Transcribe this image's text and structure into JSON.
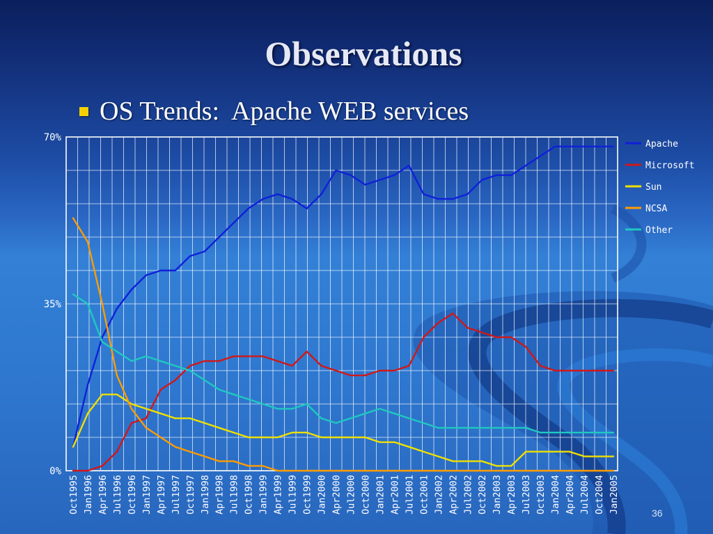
{
  "slide": {
    "title": "Observations",
    "bullet": "OS Trends:  Apache WEB services",
    "slide_number": "36"
  },
  "colors": {
    "bullet": "#f7d000",
    "title": "#e6e9f5",
    "gridline": "#ffffff",
    "axis_text": "#ffffff"
  },
  "chart_data": {
    "type": "line",
    "title": "",
    "xlabel": "",
    "ylabel": "",
    "ylim": [
      0,
      70
    ],
    "yticks": [
      "0%",
      "35%",
      "70%"
    ],
    "grid": true,
    "legend_position": "right",
    "x": [
      "Oct1995",
      "Jan1996",
      "Apr1996",
      "Jul1996",
      "Oct1996",
      "Jan1997",
      "Apr1997",
      "Jul1997",
      "Oct1997",
      "Jan1998",
      "Apr1998",
      "Jul1998",
      "Oct1998",
      "Jan1999",
      "Apr1999",
      "Jul1999",
      "Oct1999",
      "Jan2000",
      "Apr2000",
      "Jul2000",
      "Oct2000",
      "Jan2001",
      "Apr2001",
      "Jul2001",
      "Oct2001",
      "Jan2002",
      "Apr2002",
      "Jul2002",
      "Oct2002",
      "Jan2003",
      "Apr2003",
      "Jul2003",
      "Oct2003",
      "Jan2004",
      "Apr2004",
      "Jul2004",
      "Oct2004",
      "Jan2005"
    ],
    "series": [
      {
        "name": "Apache",
        "color": "#1020d8",
        "values": [
          5,
          18,
          28,
          34,
          38,
          41,
          42,
          42,
          45,
          46,
          49,
          52,
          55,
          57,
          58,
          57,
          55,
          58,
          63,
          62,
          60,
          61,
          62,
          64,
          58,
          57,
          57,
          58,
          61,
          62,
          62,
          64,
          66,
          68,
          68,
          68,
          68,
          68
        ]
      },
      {
        "name": "Microsoft",
        "color": "#d01818",
        "values": [
          0,
          0,
          1,
          4,
          10,
          11,
          17,
          19,
          22,
          23,
          23,
          24,
          24,
          24,
          23,
          22,
          25,
          22,
          21,
          20,
          20,
          21,
          21,
          22,
          28,
          31,
          33,
          30,
          29,
          28,
          28,
          26,
          22,
          21,
          21,
          21,
          21,
          21
        ]
      },
      {
        "name": "Sun",
        "color": "#f0e000",
        "values": [
          5,
          12,
          16,
          16,
          14,
          13,
          12,
          11,
          11,
          10,
          9,
          8,
          7,
          7,
          7,
          8,
          8,
          7,
          7,
          7,
          7,
          6,
          6,
          5,
          4,
          3,
          2,
          2,
          2,
          1,
          1,
          4,
          4,
          4,
          4,
          3,
          3,
          3
        ]
      },
      {
        "name": "NCSA",
        "color": "#ff9c00",
        "values": [
          53,
          48,
          35,
          20,
          13,
          9,
          7,
          5,
          4,
          3,
          2,
          2,
          1,
          1,
          0,
          0,
          0,
          0,
          0,
          0,
          0,
          0,
          0,
          0,
          0,
          0,
          0,
          0,
          0,
          0,
          0,
          0,
          0,
          0,
          0,
          0,
          0,
          0
        ]
      },
      {
        "name": "Other",
        "color": "#20c8c0",
        "values": [
          37,
          35,
          27,
          25,
          23,
          24,
          23,
          22,
          21,
          19,
          17,
          16,
          15,
          14,
          13,
          13,
          14,
          11,
          10,
          11,
          12,
          13,
          12,
          11,
          10,
          9,
          9,
          9,
          9,
          9,
          9,
          9,
          8,
          8,
          8,
          8,
          8,
          8
        ]
      }
    ]
  }
}
